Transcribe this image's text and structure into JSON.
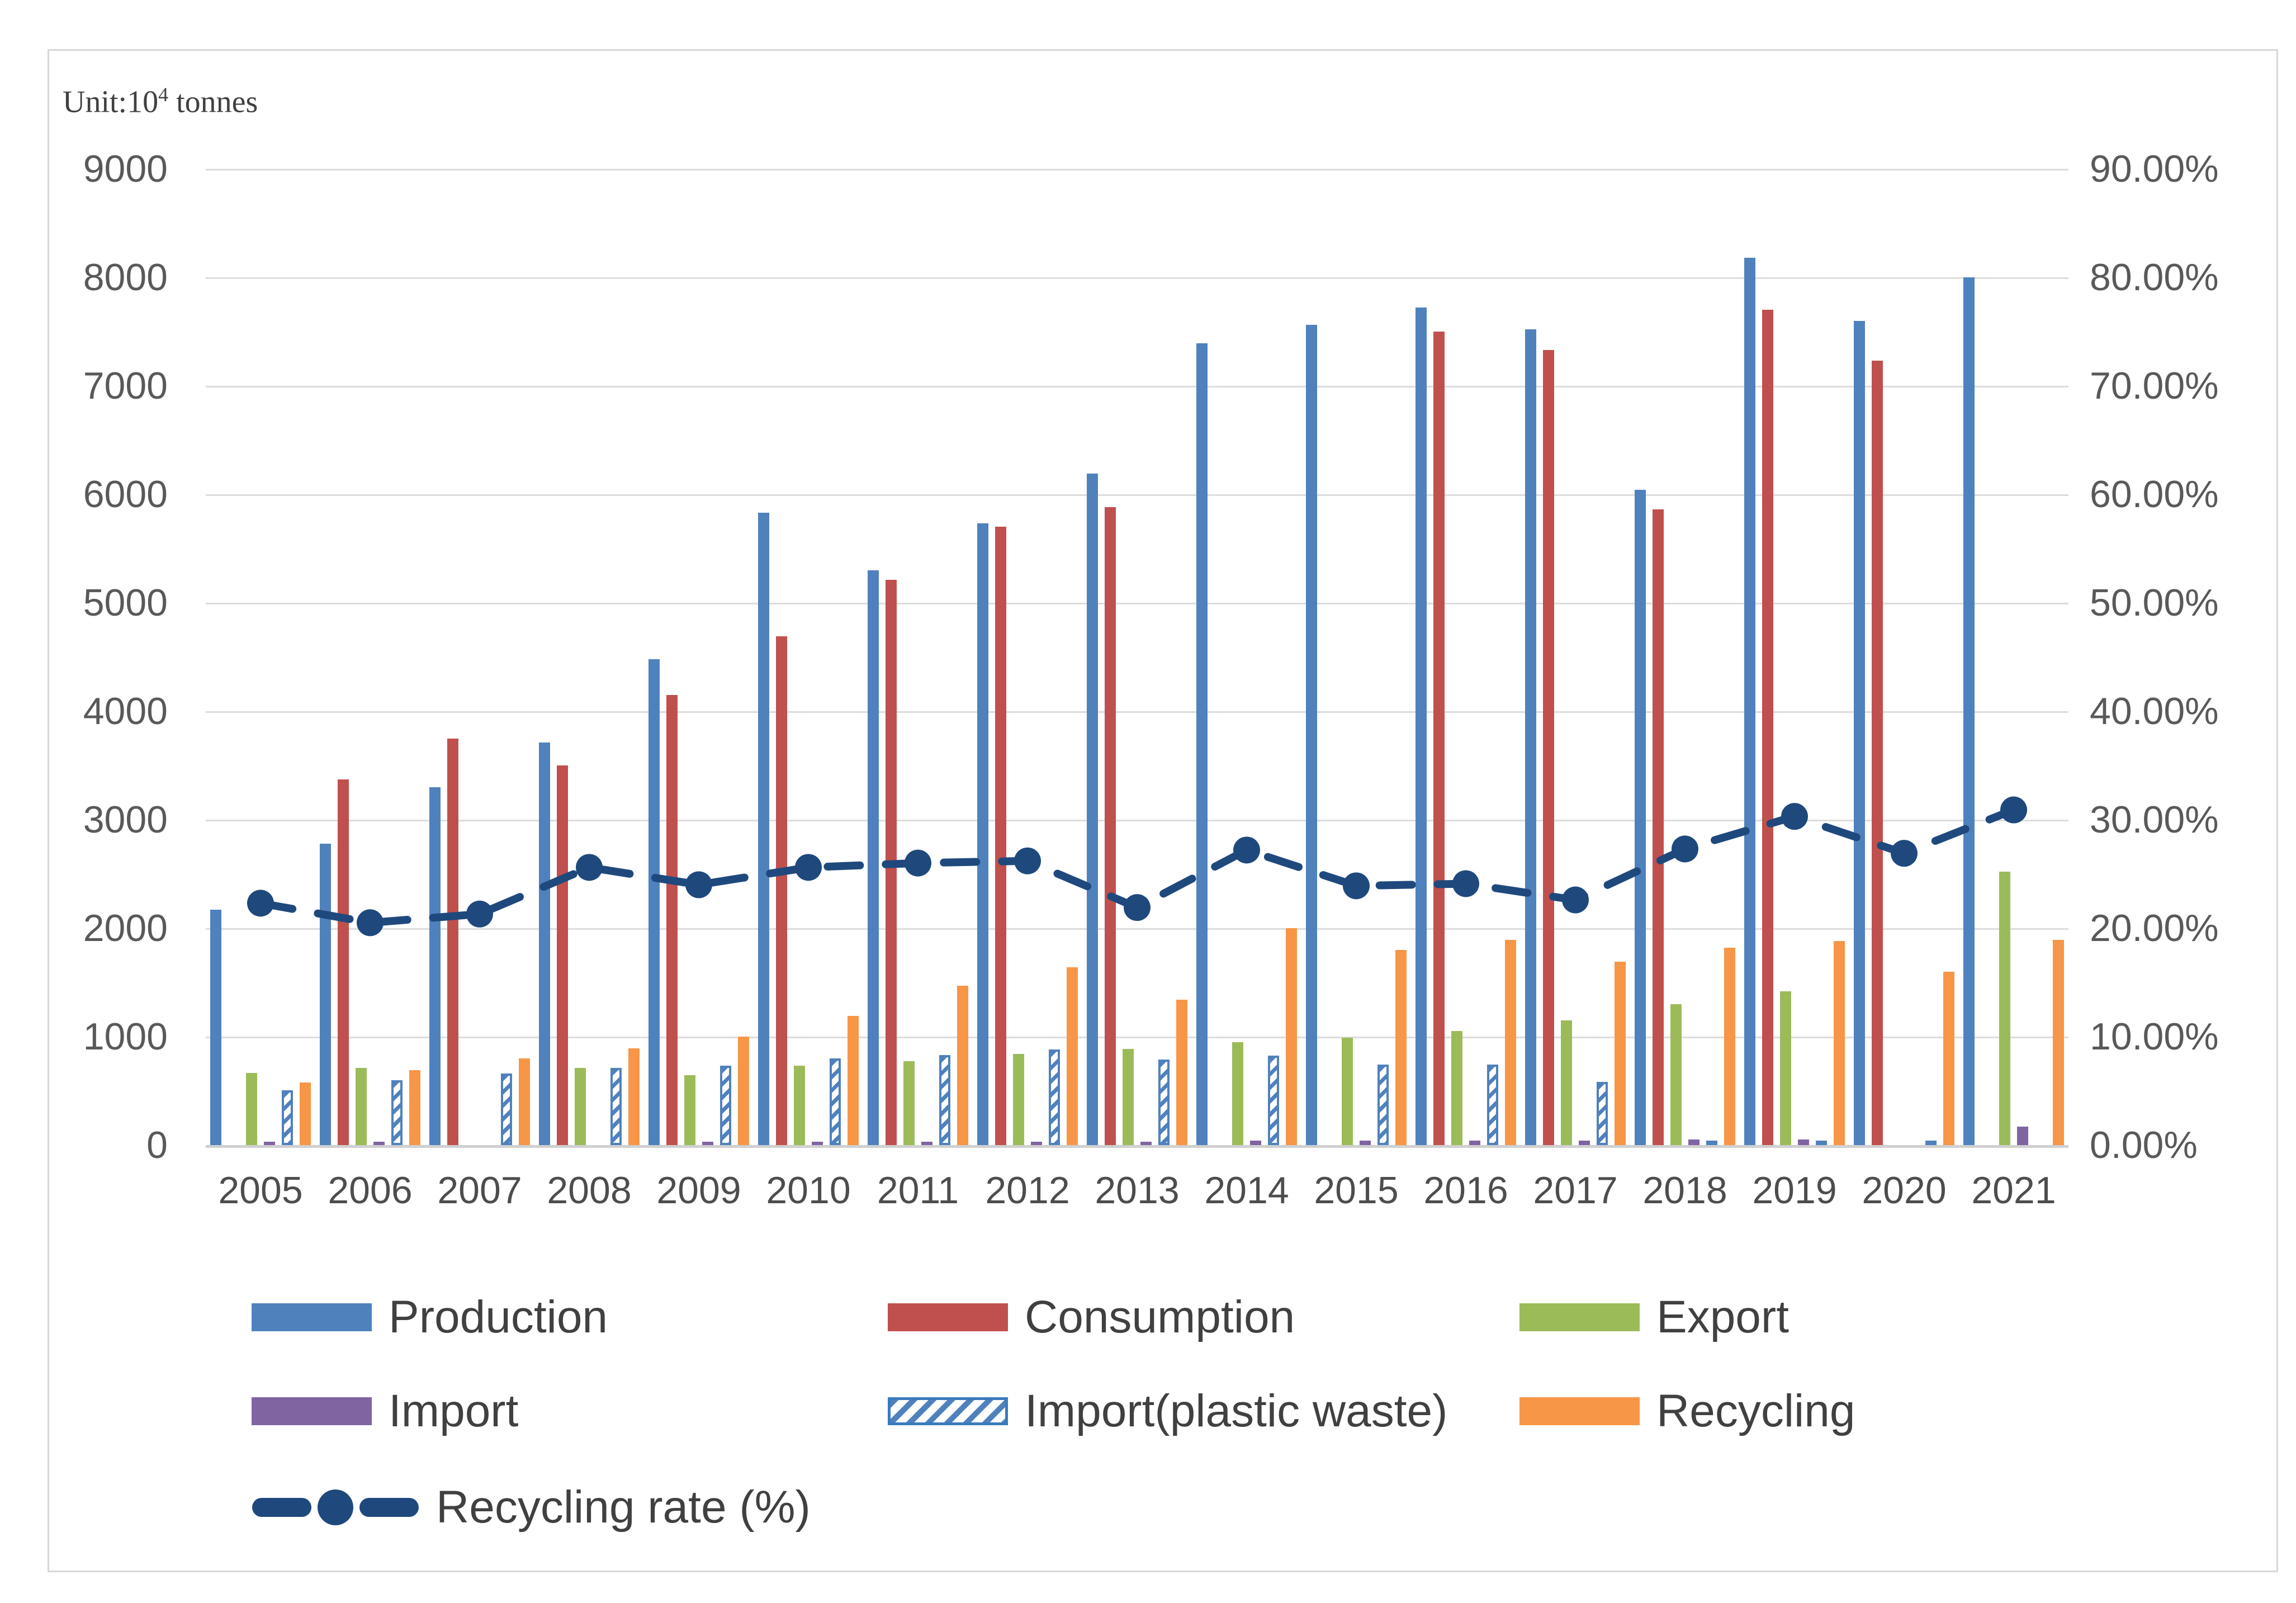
{
  "figure": {
    "unit_note": {
      "prefix": "Unit:10",
      "sup": "4",
      "suffix": " tonnes"
    }
  },
  "chart_data": {
    "type": "bar",
    "subtype": "grouped bars with secondary-axis dashed line",
    "title": "",
    "unit_note": "Unit:10^4 tonnes",
    "categories": [
      "2005",
      "2006",
      "2007",
      "2008",
      "2009",
      "2010",
      "2011",
      "2012",
      "2013",
      "2014",
      "2015",
      "2016",
      "2017",
      "2018",
      "2019",
      "2020",
      "2021"
    ],
    "series": [
      {
        "name": "Production",
        "color": "#4F81BD",
        "pattern": "solid",
        "values": [
          2170,
          2780,
          3300,
          3710,
          4480,
          5830,
          5300,
          5730,
          6190,
          7390,
          7560,
          7720,
          7520,
          6040,
          8180,
          7600,
          8000
        ]
      },
      {
        "name": "Consumption",
        "color": "#C0504D",
        "pattern": "solid",
        "values": [
          null,
          3370,
          3750,
          3500,
          4150,
          4690,
          5210,
          5700,
          5880,
          null,
          null,
          7500,
          7330,
          5860,
          7700,
          7230,
          null
        ]
      },
      {
        "name": "Export",
        "color": "#9BBB59",
        "pattern": "solid",
        "values": [
          665,
          710,
          null,
          710,
          645,
          730,
          775,
          840,
          885,
          950,
          990,
          1050,
          1150,
          1300,
          1420,
          null,
          2520
        ]
      },
      {
        "name": "Import",
        "color": "#8064A2",
        "pattern": "solid",
        "values": [
          30,
          30,
          null,
          null,
          30,
          30,
          30,
          30,
          30,
          40,
          40,
          40,
          40,
          50,
          50,
          null,
          170
        ]
      },
      {
        "name": "Import(plastic waste)",
        "color": "#4F81BD",
        "pattern": "diagonal-hatch",
        "values": [
          505,
          600,
          660,
          710,
          730,
          800,
          830,
          880,
          790,
          825,
          740,
          740,
          585,
          30,
          30,
          30,
          null
        ]
      },
      {
        "name": "Recycling",
        "color": "#F79646",
        "pattern": "solid",
        "values": [
          575,
          690,
          800,
          890,
          1000,
          1190,
          1470,
          1640,
          1340,
          2000,
          1800,
          1890,
          1690,
          1820,
          1880,
          1600,
          1890
        ]
      }
    ],
    "line_series": {
      "name": "Recycling rate (%)",
      "color": "#1F497D",
      "style": "dashed line with round markers",
      "axis": "right",
      "values": [
        22.3,
        20.5,
        21.3,
        25.6,
        24.0,
        25.6,
        26.0,
        26.2,
        21.9,
        27.2,
        23.9,
        24.1,
        22.6,
        27.3,
        30.3,
        26.9,
        30.9
      ]
    },
    "axes": {
      "y_left": {
        "min": 0,
        "max": 9000,
        "step": 1000,
        "ticks_top_to_bottom": [
          "9000",
          "8000",
          "7000",
          "6000",
          "5000",
          "4000",
          "3000",
          "2000",
          "1000",
          "0"
        ]
      },
      "y_right": {
        "min": 0,
        "max": 90,
        "step": 10,
        "ticks_top_to_bottom": [
          "90.00%",
          "80.00%",
          "70.00%",
          "60.00%",
          "50.00%",
          "40.00%",
          "30.00%",
          "20.00%",
          "10.00%",
          "0.00%"
        ]
      },
      "x": {
        "ticks": [
          "2005",
          "2006",
          "2007",
          "2008",
          "2009",
          "2010",
          "2011",
          "2012",
          "2013",
          "2014",
          "2015",
          "2016",
          "2017",
          "2018",
          "2019",
          "2020",
          "2021"
        ]
      }
    },
    "grid": "horizontal gridlines on, light gray",
    "legend_position": "bottom-left, three columns, three rows",
    "legend_order": [
      "Production",
      "Consumption",
      "Export",
      "Import",
      "Import(plastic waste)",
      "Recycling",
      "Recycling rate (%)"
    ]
  }
}
